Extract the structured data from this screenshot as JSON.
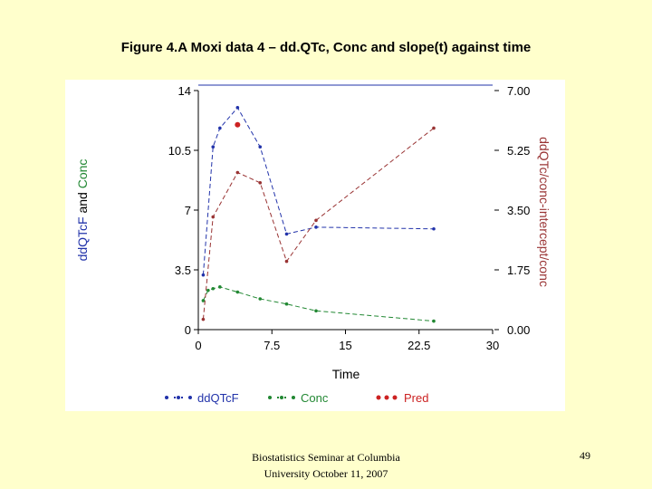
{
  "slide": {
    "title": "Figure 4.A Moxi data 4 – dd.QTc, Conc and slope(t) against time",
    "footer_line1": "Biostatistics Seminar at Columbia",
    "footer_line2": "University October 11, 2007",
    "page_number": "49"
  },
  "colors": {
    "background": "#ffffcc",
    "panel": "#ffffff",
    "ddqtcf": "#2233aa",
    "conc": "#228833",
    "pred": "#cc2222",
    "secondary": "#993333"
  },
  "chart_data": {
    "type": "line",
    "xlabel": "Time",
    "ylabel_left_part1": "ddQTcF",
    "ylabel_left_part2": " and ",
    "ylabel_left_part3": "Conc",
    "ylabel_right": "ddQTc/conc-intercept/conc",
    "xlim": [
      0,
      30
    ],
    "ylim_left": [
      0,
      14
    ],
    "ylim_right": [
      0,
      7
    ],
    "x_ticks": [
      "0",
      "7.5",
      "15",
      "22.5",
      "30"
    ],
    "y_left_ticks": [
      "0",
      "3.5",
      "7",
      "10.5",
      "14"
    ],
    "y_right_ticks": [
      "0.00",
      "1.75",
      "3.50",
      "5.25",
      "7.00"
    ],
    "legend_position": "bottom",
    "legend": [
      "ddQTcF",
      "Conc",
      "Pred"
    ],
    "series": [
      {
        "name": "ddQTcF",
        "axis": "left",
        "style": "dash",
        "color": "#2233aa",
        "x": [
          0.5,
          1.5,
          2.2,
          4.0,
          6.3,
          9.0,
          12.0,
          24.0
        ],
        "y": [
          3.2,
          10.7,
          11.8,
          13.0,
          10.7,
          5.6,
          6.0,
          5.9
        ]
      },
      {
        "name": "Conc",
        "axis": "left",
        "style": "dash",
        "color": "#228833",
        "x": [
          0.5,
          1.0,
          1.5,
          2.2,
          4.0,
          6.3,
          9.0,
          12.0,
          24.0
        ],
        "y": [
          1.7,
          2.3,
          2.4,
          2.5,
          2.2,
          1.8,
          1.5,
          1.1,
          0.5
        ]
      },
      {
        "name": "Pred",
        "axis": "right",
        "style": "dot",
        "color": "#cc2222",
        "x": [
          4.0
        ],
        "y": [
          6.0
        ]
      },
      {
        "name": "",
        "axis": "right",
        "style": "dash",
        "color": "#993333",
        "x": [
          0.5,
          1.5,
          4.0,
          6.3,
          9.0,
          12.0,
          24.0
        ],
        "y": [
          0.3,
          3.3,
          4.6,
          4.3,
          2.0,
          3.2,
          5.9
        ]
      }
    ]
  }
}
